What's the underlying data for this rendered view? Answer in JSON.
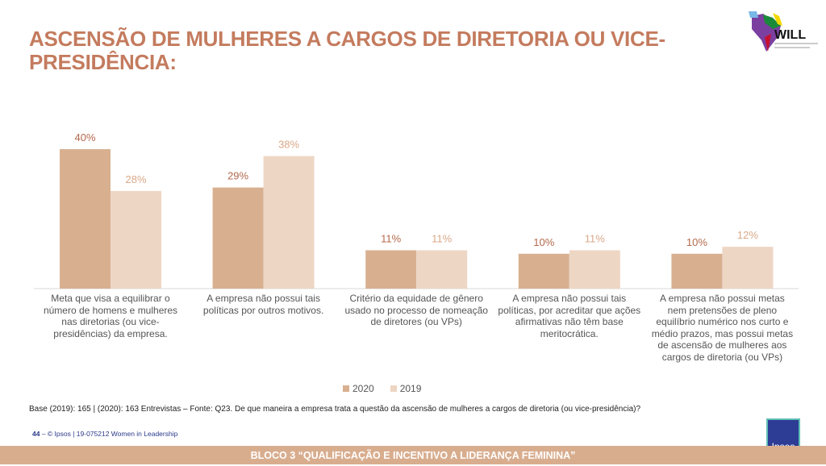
{
  "title": "ASCENSÃO DE MULHERES A CARGOS DE DIRETORIA OU VICE-PRESIDÊNCIA:",
  "logo": {
    "text": "WILL",
    "subtitle": "Women in Leadership in Latin America"
  },
  "chart_data": {
    "type": "bar",
    "categories": [
      "Meta que visa a equilibrar o número de homens e mulheres nas diretorias (ou vice-presidências) da empresa.",
      "A empresa não possui tais políticas por outros motivos.",
      "Critério da equidade de gênero usado no processo de nomeação de diretores (ou VPs)",
      "A empresa não possui tais políticas, por acreditar que ações afirmativas não têm base meritocrática.",
      "A empresa não possui metas nem pretensões de pleno equilíbrio numérico nos curto e médio prazos, mas possui metas de ascensão de mulheres aos cargos de diretoria (ou VPs)"
    ],
    "series": [
      {
        "name": "2020",
        "values": [
          40,
          29,
          11,
          10,
          10
        ],
        "labels": [
          "40%",
          "29%",
          "11%",
          "10%",
          "10%"
        ],
        "color": "#d8b090",
        "label_color": "#b4694c"
      },
      {
        "name": "2019",
        "values": [
          28,
          38,
          11,
          11,
          12
        ],
        "labels": [
          "28%",
          "38%",
          "11%",
          "11%",
          "12%"
        ],
        "color": "#eed6c4",
        "label_color": "#d9a888"
      }
    ],
    "ylim": [
      0,
      45
    ],
    "grid": false,
    "legend": "bottom"
  },
  "base": "Base (2019): 165 | (2020): 163 Entrevistas – Fonte: Q23. De que maneira a empresa trata a questão da ascensão de mulheres a cargos de diretoria (ou vice-presidência)?",
  "footer": {
    "page": "44",
    "text": " –  © Ipsos | 19-075212 Women in Leadership"
  },
  "band": "BLOCO 3 “QUALIFICAÇÃO E INCENTIVO A LIDERANÇA  FEMININA”",
  "ipsos": "Ipsos"
}
